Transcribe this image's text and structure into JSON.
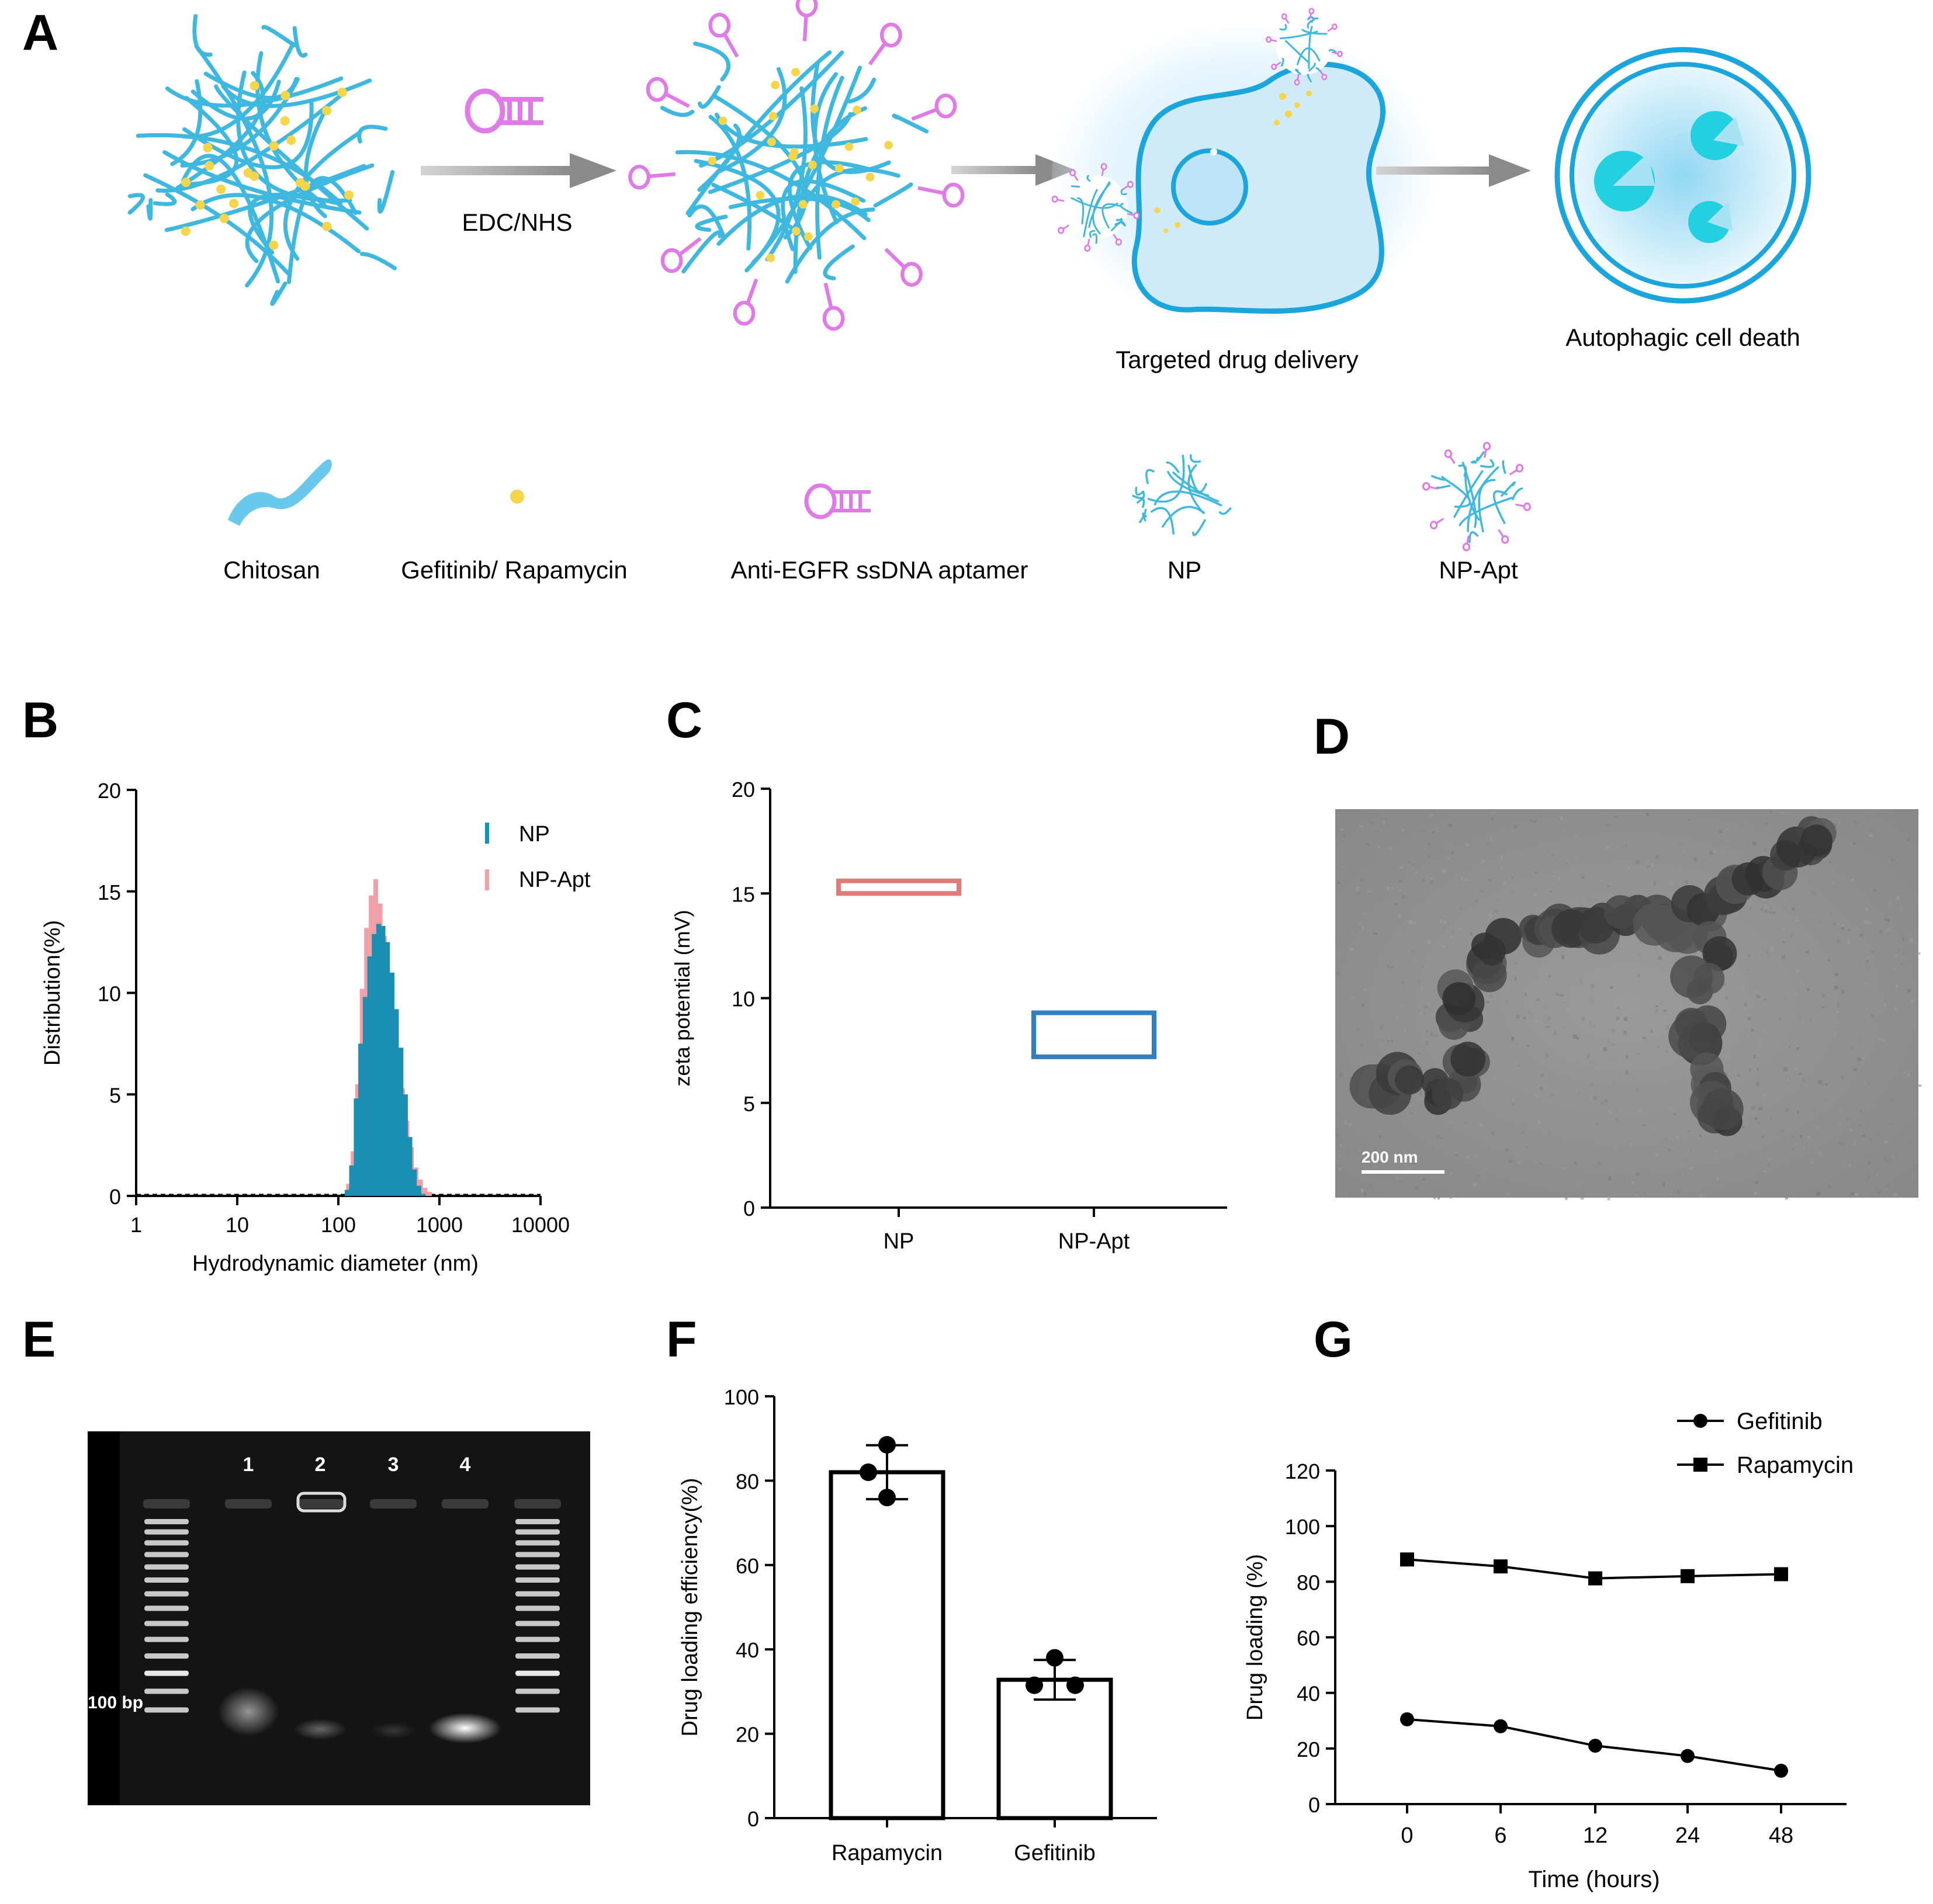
{
  "panels": {
    "A": "A",
    "B": "B",
    "C": "C",
    "D": "D",
    "E": "E",
    "F": "F",
    "G": "G"
  },
  "schematic": {
    "step_label": "EDC/NHS",
    "delivery_caption": "Targeted drug delivery",
    "death_caption": "Autophagic cell death",
    "legend": [
      "Chitosan",
      "Gefitinib/ Rapamycin",
      "Anti-EGFR ssDNA aptamer",
      "NP",
      "NP-Apt"
    ]
  },
  "tem": {
    "scale_label": "200 nm"
  },
  "gel": {
    "lanes": [
      "1",
      "2",
      "3",
      "4"
    ],
    "marker_label": "100 bp"
  },
  "colors": {
    "np_blue": "#1a8fb3",
    "np_apt_pink": "#f0a0a6",
    "zeta_np": "#e07b78",
    "zeta_npapt": "#2f7fc4",
    "chitosan": "#3fb8e0",
    "aptamer": "#e07ae8",
    "drug": "#f5d64a",
    "cell_fill": "#cfeaf8",
    "autophagy": "#22d0e0"
  },
  "chart_data": [
    {
      "panel": "B",
      "type": "bar",
      "title": "",
      "xlabel": "Hydrodynamic diameter (nm)",
      "ylabel": "Distribution(%)",
      "xscale": "log",
      "xlim": [
        1,
        10000
      ],
      "ylim": [
        0,
        20
      ],
      "xticks": [
        "1",
        "10",
        "100",
        "1000",
        "10000"
      ],
      "yticks": [
        "0",
        "5",
        "10",
        "15",
        "20"
      ],
      "legend": [
        "NP",
        "NP-Apt"
      ],
      "legend_position": "top-right",
      "series": [
        {
          "name": "NP",
          "x": [
            122,
            135,
            150,
            166,
            184,
            204,
            226,
            250,
            277,
            307,
            340,
            376,
            417,
            462,
            511,
            566,
            627,
            694
          ],
          "values": [
            0.3,
            1.5,
            4.8,
            7.5,
            9.8,
            11.8,
            12.9,
            13.4,
            13.3,
            12.5,
            11.0,
            9.2,
            7.3,
            5.0,
            2.9,
            1.3,
            0.5,
            0.1
          ]
        },
        {
          "name": "NP-Apt",
          "x": [
            126,
            140,
            155,
            172,
            190,
            211,
            234,
            259,
            287,
            318,
            352,
            390,
            432,
            478,
            530,
            587,
            650,
            720,
            797
          ],
          "values": [
            0.6,
            2.2,
            5.5,
            10.2,
            13.2,
            14.8,
            15.6,
            14.4,
            12.8,
            11.0,
            9.0,
            7.1,
            5.3,
            3.7,
            2.4,
            1.4,
            0.8,
            0.4,
            0.2
          ]
        }
      ]
    },
    {
      "panel": "C",
      "type": "box",
      "title": "",
      "xlabel": "",
      "ylabel": "zeta potential (mV)",
      "ylim": [
        0,
        20
      ],
      "yticks": [
        "0",
        "5",
        "10",
        "15",
        "20"
      ],
      "categories": [
        "NP",
        "NP-Apt"
      ],
      "boxes": [
        {
          "name": "NP",
          "low": 15.0,
          "high": 15.6
        },
        {
          "name": "NP-Apt",
          "low": 7.2,
          "high": 9.3
        }
      ]
    },
    {
      "panel": "F",
      "type": "bar",
      "title": "",
      "xlabel": "",
      "ylabel": "Drug loading efficiency(%)",
      "ylim": [
        0,
        100
      ],
      "yticks": [
        "0",
        "20",
        "40",
        "60",
        "80",
        "100"
      ],
      "categories": [
        "Rapamycin",
        "Gefitinib"
      ],
      "values": [
        82,
        32.8
      ],
      "errors": [
        6.4,
        4.7
      ],
      "points": [
        [
          88.5,
          82,
          76
        ],
        [
          38,
          31.5,
          31.5
        ]
      ]
    },
    {
      "panel": "G",
      "type": "line",
      "title": "",
      "xlabel": "Time (hours)",
      "ylabel": "Drug loading (%)",
      "ylim": [
        0,
        120
      ],
      "yticks": [
        "0",
        "20",
        "40",
        "60",
        "80",
        "100",
        "120"
      ],
      "categories": [
        "0",
        "6",
        "12",
        "24",
        "48"
      ],
      "legend_position": "top-right",
      "series": [
        {
          "name": "Gefitinib",
          "marker": "circle",
          "values": [
            30.5,
            28,
            21,
            17.3,
            12
          ]
        },
        {
          "name": "Rapamycin",
          "marker": "square",
          "values": [
            88,
            85.5,
            81.2,
            82,
            82.7
          ]
        }
      ]
    }
  ]
}
